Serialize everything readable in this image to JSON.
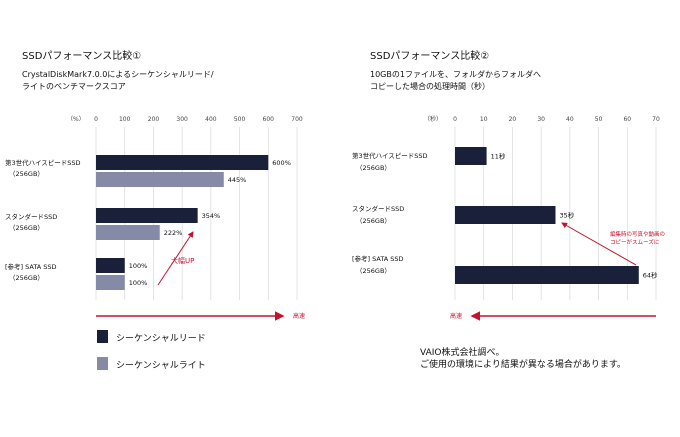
{
  "colors": {
    "seq_read": "#1a1f3a",
    "seq_write": "#858aa6",
    "accent": "#c8102e"
  },
  "chart_data": [
    {
      "type": "bar",
      "title": "SSDパフォーマンス比較①",
      "subtitle": [
        "CrystalDiskMark7.0.0によるシーケンシャルリード/",
        "ライトのベンチマークスコア"
      ],
      "unit_label": "（%）",
      "xlim": [
        0,
        700
      ],
      "ticks": [
        0,
        100,
        200,
        300,
        400,
        500,
        600,
        700
      ],
      "categories": [
        [
          "第3世代ハイスピードSSD",
          "（256GB）"
        ],
        [
          "スタンダードSSD",
          "（256GB）"
        ],
        [
          "[参考] SATA SSD",
          "（256GB）"
        ]
      ],
      "series": [
        {
          "name": "シーケンシャルリード",
          "values": [
            600,
            354,
            100
          ],
          "labels": [
            "600%",
            "354%",
            "100%"
          ]
        },
        {
          "name": "シーケンシャルライト",
          "values": [
            445,
            222,
            100
          ],
          "labels": [
            "445%",
            "222%",
            "100%"
          ]
        }
      ],
      "annotation": "大幅UP",
      "direction_label": "高速",
      "legend": "bottom-left"
    },
    {
      "type": "bar",
      "title": "SSDパフォーマンス比較②",
      "subtitle": [
        "10GBの1ファイルを、フォルダからフォルダへ",
        "コピーした場合の処理時間（秒）"
      ],
      "unit_label": "（秒）",
      "xlim": [
        0,
        70
      ],
      "ticks": [
        0,
        10,
        20,
        30,
        40,
        50,
        60,
        70
      ],
      "categories": [
        [
          "第3世代ハイスピードSSD",
          "（256GB）"
        ],
        [
          "スタンダードSSD",
          "（256GB）"
        ],
        [
          "[参考] SATA SSD",
          "（256GB）"
        ]
      ],
      "series": [
        {
          "values": [
            11,
            35,
            64
          ],
          "labels": [
            "11秒",
            "35秒",
            "64秒"
          ]
        }
      ],
      "annotation": [
        "編集時の写真や動画の",
        "コピーがスムーズに"
      ],
      "direction_label": "高速"
    }
  ],
  "footnote": [
    "VAIO株式会社調べ。",
    "ご使用の環境により結果が異なる場合があります。"
  ]
}
